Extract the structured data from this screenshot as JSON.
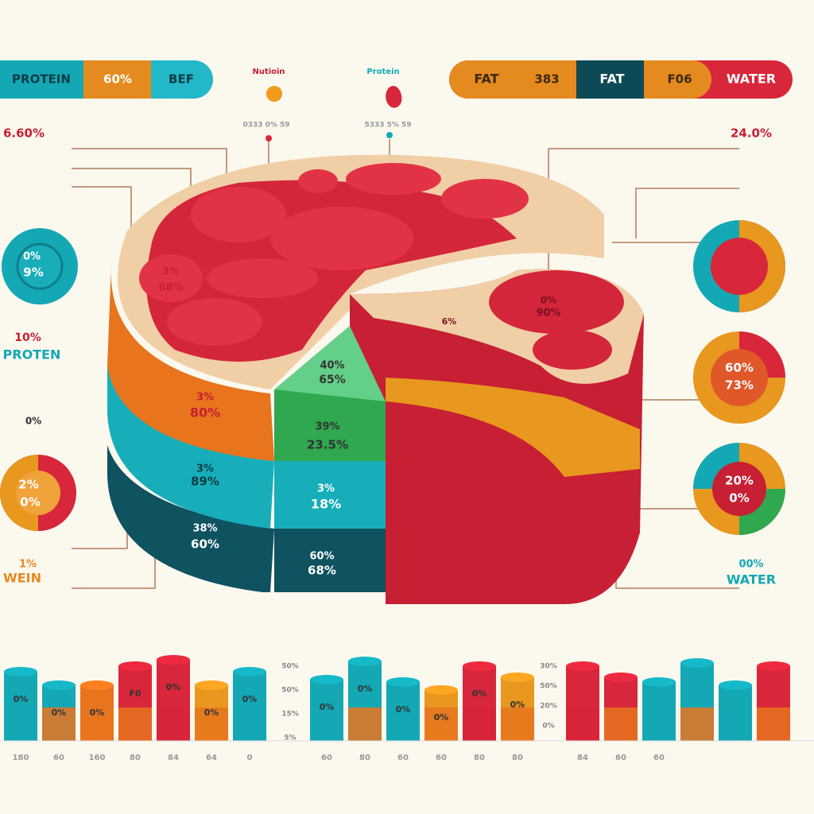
{
  "header": {
    "left_pill": [
      "PROTEIN",
      "60%",
      "BEF"
    ],
    "right_pill": [
      "FAT",
      "383",
      "FAT",
      "F06",
      "WATER"
    ],
    "icons": [
      {
        "label": "Nutioin",
        "caption": "0333 0% 59"
      },
      {
        "label": "Protein",
        "caption": "5333 5% 59"
      }
    ]
  },
  "left_panel": {
    "top_value": "6.60%",
    "donut_top": [
      "0%",
      "9%"
    ],
    "mid_value": "10%",
    "mid_label": "PROTEN",
    "small_value": "0%",
    "donut_bottom": [
      "2%",
      "0%"
    ],
    "bottom_value": "1%",
    "bottom_label": "WEIN"
  },
  "right_panel": {
    "top_value": "24.0%",
    "donut_mid": [
      "60%",
      "73%"
    ],
    "donut_bottom": [
      "20%",
      "0%"
    ],
    "bottom_value": "00%",
    "bottom_label": "WATER"
  },
  "cake_labels": [
    [
      "3%",
      "68%"
    ],
    [
      "3%",
      "80%"
    ],
    [
      "40%",
      "65%"
    ],
    [
      "39%",
      "23.5%"
    ],
    [
      "3%",
      "89%"
    ],
    [
      "3%",
      "18%"
    ],
    [
      "38%",
      "60%"
    ],
    [
      "60%",
      "68%"
    ],
    [
      "0%",
      "90%"
    ],
    [
      "6%"
    ]
  ],
  "bottom": {
    "mid_axis": [
      "50%",
      "50%",
      "15%",
      "5%"
    ],
    "right_axis": [
      "30%",
      "50%",
      "20%",
      "0%"
    ],
    "bar_labels": [
      "0%",
      "0%",
      "0%",
      "F0",
      "0%",
      "0%",
      "0%",
      "0%",
      "0%",
      "0%",
      "0%",
      "0%",
      "0%"
    ],
    "x_labels": [
      "180",
      "60",
      "160",
      "80",
      "84",
      "64",
      "0",
      "60",
      "80",
      "60",
      "60",
      "80",
      "80",
      "84",
      "60",
      "60"
    ]
  }
}
